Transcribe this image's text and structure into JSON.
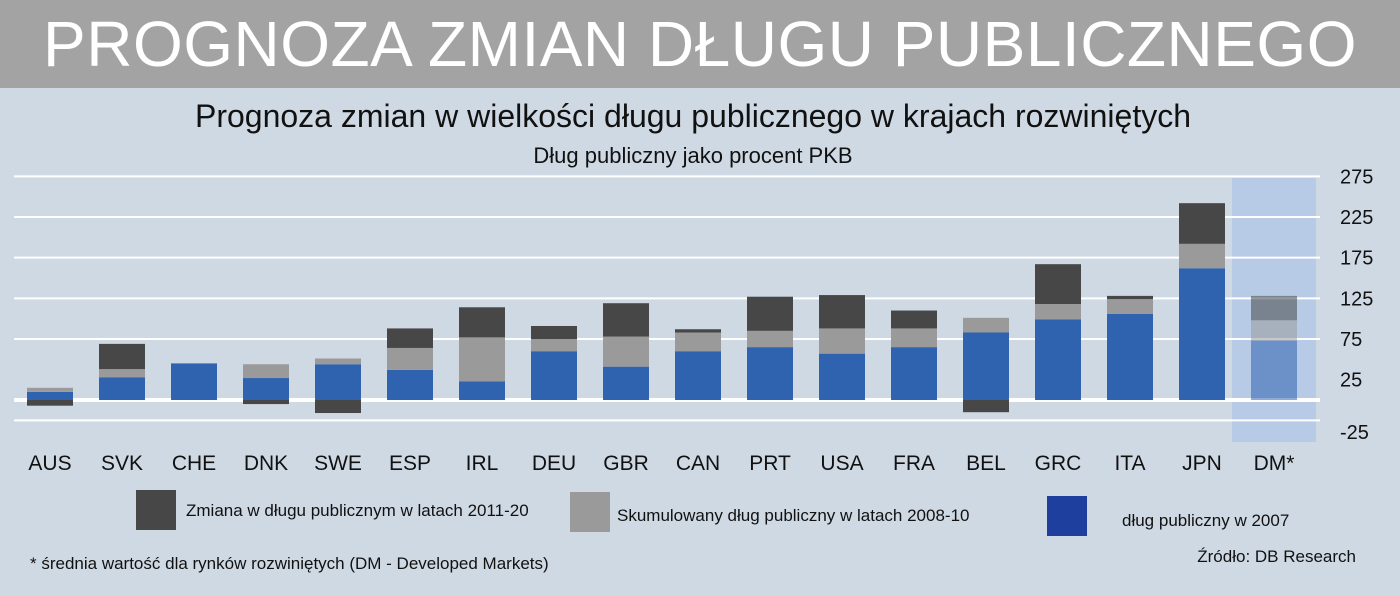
{
  "header": {
    "banner_title": "PROGNOZA ZMIAN DŁUGU PUBLICZNEGO"
  },
  "chart_data": {
    "type": "bar",
    "stacked": true,
    "title": "Prognoza zmian w wielkości długu publicznego w krajach rozwiniętych",
    "subtitle": "Dług publiczny jako procent PKB",
    "categories": [
      "AUS",
      "SVK",
      "CHE",
      "DNK",
      "SWE",
      "ESP",
      "IRL",
      "DEU",
      "GBR",
      "CAN",
      "PRT",
      "USA",
      "FRA",
      "BEL",
      "GRC",
      "ITA",
      "JPN",
      "DM*"
    ],
    "series": [
      {
        "name": "dług publiczny w 2007",
        "color": "#2f63b0",
        "values": [
          10,
          28,
          45,
          27,
          44,
          37,
          23,
          60,
          41,
          60,
          65,
          57,
          65,
          83,
          99,
          106,
          162,
          73
        ]
      },
      {
        "name": "Skumulowany dług publiczny w latach 2008-10",
        "color": "#9a9a9a",
        "values": [
          5,
          10,
          0,
          17,
          7,
          27,
          54,
          15,
          37,
          23,
          20,
          31,
          23,
          18,
          19,
          18,
          30,
          25
        ]
      },
      {
        "name": "Zmiana w długu publicznym w latach 2011-20",
        "color": "#474747",
        "values": [
          -7,
          31,
          0,
          -5,
          -16,
          24,
          37,
          16,
          41,
          4,
          42,
          41,
          22,
          -15,
          49,
          4,
          50,
          30
        ]
      }
    ],
    "legend_order": [
      "Zmiana w długu publicznym w latach 2011-20",
      "Skumulowany dług publiczny w latach 2008-10",
      "dług publiczny w 2007"
    ],
    "legend_colors": [
      "#474747",
      "#9a9a9a",
      "#1f3f9e"
    ],
    "yticks": [
      275,
      225,
      175,
      125,
      75,
      25,
      -25
    ],
    "ylim": [
      -25,
      275
    ],
    "y_axis_side": "right",
    "grid": true,
    "legend_position": "bottom",
    "highlighted_category": "DM*",
    "highlight_color": "#b3c7e6"
  },
  "footer": {
    "footnote": "* średnia wartość dla rynków rozwiniętych (DM - Developed Markets)",
    "source": "Źródło: DB Research"
  }
}
